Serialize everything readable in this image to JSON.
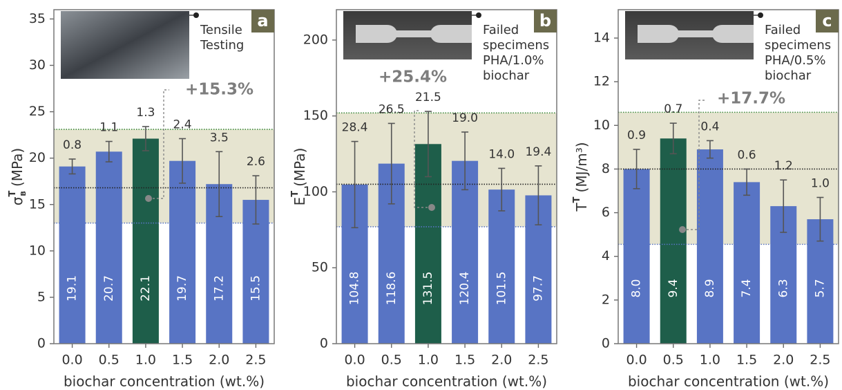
{
  "chart_data": [
    {
      "type": "bar",
      "panel_label": "a",
      "ylabel": "σ",
      "ylabel_sup": "T",
      "ylabel_sub": "B",
      "ylabel_unit": "(MPa)",
      "xlabel": "biochar concentration (wt.%)",
      "categories": [
        "0.0",
        "0.5",
        "1.0",
        "1.5",
        "2.0",
        "2.5"
      ],
      "values": [
        19.1,
        20.7,
        22.1,
        19.7,
        17.2,
        15.5
      ],
      "errors": [
        0.8,
        1.1,
        1.3,
        2.4,
        3.5,
        2.6
      ],
      "colors": [
        "#5874c4",
        "#5874c4",
        "#1e5e4a",
        "#5874c4",
        "#5874c4",
        "#5874c4"
      ],
      "ylim": [
        0,
        36
      ],
      "yticks": [
        0,
        5,
        10,
        15,
        20,
        25,
        30,
        35
      ],
      "band": {
        "lower": 13.0,
        "mean": 16.8,
        "upper": 23.1,
        "color": "#e6e4d0"
      },
      "annotation": "+15.3%",
      "inset_text": [
        "Tensile",
        "Testing"
      ]
    },
    {
      "type": "bar",
      "panel_label": "b",
      "ylabel": "E",
      "ylabel_sup": "T",
      "ylabel_unit": "(MPa)",
      "xlabel": "biochar concentration (wt.%)",
      "categories": [
        "0.0",
        "0.5",
        "1.0",
        "1.5",
        "2.0",
        "2.5"
      ],
      "values": [
        104.8,
        118.6,
        131.5,
        120.4,
        101.5,
        97.7
      ],
      "errors": [
        28.4,
        26.5,
        21.5,
        19.0,
        14.0,
        19.4
      ],
      "error_labels": [
        "28.4",
        "26.5",
        "21.5",
        "19.0",
        "14.0",
        "19.4"
      ],
      "colors": [
        "#5874c4",
        "#5874c4",
        "#1e5e4a",
        "#5874c4",
        "#5874c4",
        "#5874c4"
      ],
      "ylim": [
        0,
        220
      ],
      "yticks": [
        0,
        50,
        100,
        150,
        200
      ],
      "band": {
        "lower": 77,
        "mean": 105,
        "upper": 152,
        "color": "#e6e4d0"
      },
      "annotation": "+25.4%",
      "inset_text": [
        "Failed",
        "specimens",
        "PHA/1.0%",
        "biochar"
      ]
    },
    {
      "type": "bar",
      "panel_label": "c",
      "ylabel": "T",
      "ylabel_sup": "T",
      "ylabel_unit": "(MJ/m³)",
      "xlabel": "biochar concentration (wt.%)",
      "categories": [
        "0.0",
        "0.5",
        "1.0",
        "1.5",
        "2.0",
        "2.5"
      ],
      "values": [
        8.0,
        9.4,
        8.9,
        7.4,
        6.3,
        5.7
      ],
      "value_labels": [
        "8.0",
        "9.4",
        "8.9",
        "7.4",
        "6.3",
        "5.7"
      ],
      "errors": [
        0.9,
        0.7,
        0.4,
        0.6,
        1.2,
        1.0
      ],
      "error_labels": [
        "0.9",
        "0.7",
        "0.4",
        "0.6",
        "1.2",
        "1.0"
      ],
      "colors": [
        "#5874c4",
        "#1e5e4a",
        "#5874c4",
        "#5874c4",
        "#5874c4",
        "#5874c4"
      ],
      "ylim": [
        0,
        15.3
      ],
      "yticks": [
        0,
        2,
        4,
        6,
        8,
        10,
        12,
        14
      ],
      "band": {
        "lower": 4.55,
        "mean": 8.0,
        "upper": 10.6,
        "color": "#e6e4d0"
      },
      "annotation": "+17.7%",
      "inset_text": [
        "Failed",
        "specimens",
        "PHA/0.5%",
        "biochar"
      ]
    }
  ]
}
